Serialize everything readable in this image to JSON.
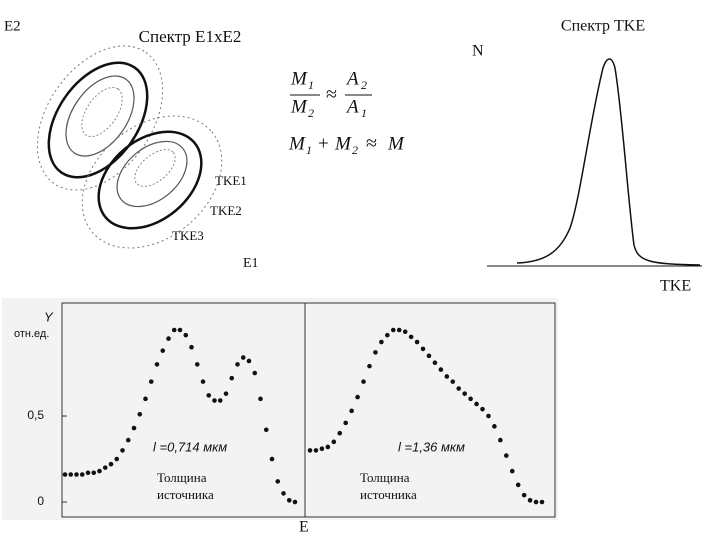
{
  "left_panel": {
    "title": "Спектр E1xE2",
    "y_axis": "E2",
    "x_axis": "E1",
    "contours": [
      "TKE1",
      "TKE2",
      "TKE3"
    ]
  },
  "formulas": {
    "approx": "≈",
    "plus": "+",
    "first": {
      "num_left": "M",
      "num_left_sub": "1",
      "den_left": "M",
      "den_left_sub": "2",
      "num_right": "A",
      "num_right_sub": "2",
      "den_right": "A",
      "den_right_sub": "1"
    },
    "second": {
      "a": "M",
      "a_sub": "1",
      "b": "M",
      "b_sub": "2",
      "result": "M"
    }
  },
  "tke_panel": {
    "title": "Спектр TKE",
    "y_axis": "N",
    "x_axis": "TKE"
  },
  "x_label": "E",
  "chart_data": [
    {
      "type": "line",
      "ylabel": [
        "Y",
        "отн.ед."
      ],
      "ylim": [
        -0.087,
        1.157
      ],
      "yticks": [
        0,
        {
          "value": 0.5,
          "label": "0,5"
        }
      ],
      "annotation": "l =0,714 мкм",
      "caption": [
        "Толщина",
        "источника"
      ],
      "values": [
        0.16,
        0.16,
        0.16,
        0.16,
        0.17,
        0.17,
        0.18,
        0.2,
        0.22,
        0.25,
        0.3,
        0.36,
        0.43,
        0.51,
        0.6,
        0.7,
        0.8,
        0.88,
        0.95,
        1.0,
        1.0,
        0.97,
        0.9,
        0.8,
        0.7,
        0.62,
        0.59,
        0.59,
        0.63,
        0.72,
        0.8,
        0.84,
        0.82,
        0.75,
        0.6,
        0.42,
        0.25,
        0.12,
        0.05,
        0.01,
        0.0
      ]
    },
    {
      "type": "line",
      "ylim": [
        -0.087,
        1.157
      ],
      "annotation": "l =1,36 мкм",
      "caption": [
        "Толщина",
        "источника"
      ],
      "values": [
        0.3,
        0.3,
        0.31,
        0.32,
        0.35,
        0.4,
        0.46,
        0.53,
        0.61,
        0.7,
        0.79,
        0.87,
        0.93,
        0.97,
        1.0,
        1.0,
        0.99,
        0.96,
        0.93,
        0.89,
        0.85,
        0.81,
        0.77,
        0.73,
        0.7,
        0.66,
        0.63,
        0.6,
        0.57,
        0.54,
        0.5,
        0.44,
        0.36,
        0.27,
        0.18,
        0.1,
        0.04,
        0.01,
        0.0,
        0.0
      ]
    }
  ]
}
